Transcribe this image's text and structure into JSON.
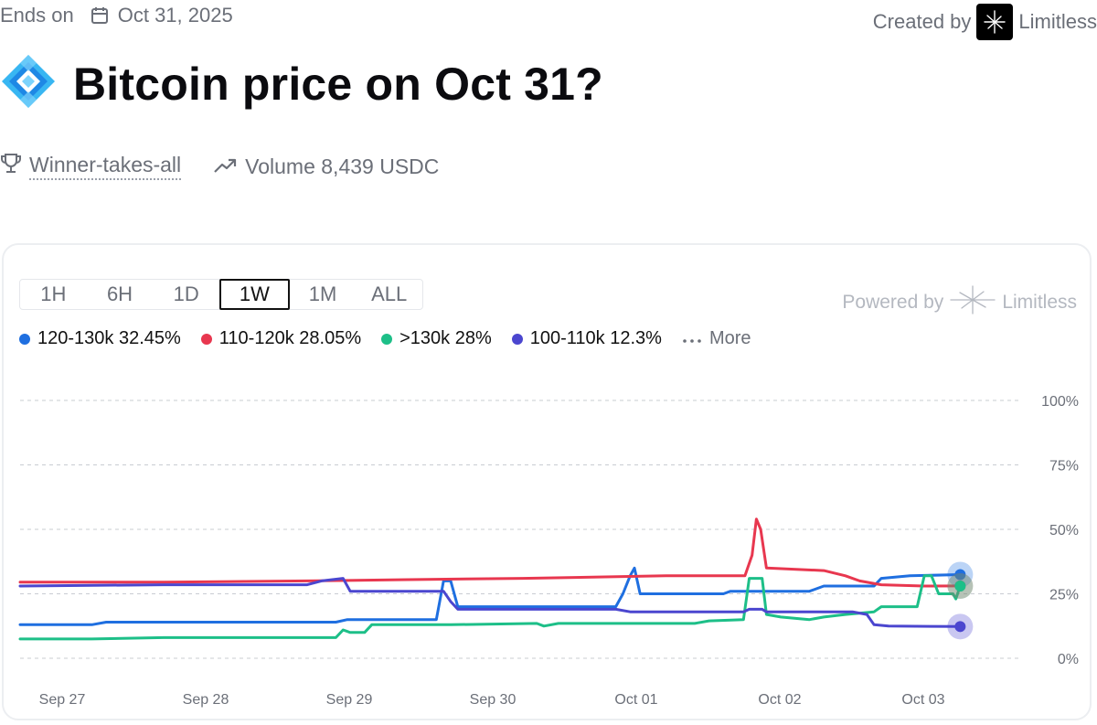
{
  "header": {
    "ends_label": "Ends on",
    "calendar_icon": "calendar-icon",
    "end_date": "Oct 31, 2025",
    "created_label": "Created by",
    "creator_name": "Limitless"
  },
  "market": {
    "title": "Bitcoin price on Oct 31?",
    "icon": "diamond-logo-icon",
    "type_label": "Winner-takes-all",
    "volume_text": "Volume 8,439 USDC"
  },
  "chart_controls": {
    "tabs": [
      "1H",
      "6H",
      "1D",
      "1W",
      "1M",
      "ALL"
    ],
    "active_tab": "1W",
    "powered_by": "Powered by",
    "powered_brand": "Limitless",
    "more_label": "More"
  },
  "colors": {
    "blue": "#1f6fe0",
    "red": "#e8374f",
    "green": "#1dbf88",
    "purple": "#4b46cf"
  },
  "chart_data": {
    "type": "line",
    "x_labels": [
      "Sep 27",
      "Sep 28",
      "Sep 29",
      "Sep 30",
      "Oct 01",
      "Oct 02",
      "Oct 03"
    ],
    "x_range": [
      0,
      7
    ],
    "ylim": [
      0,
      100
    ],
    "y_ticks": [
      "100%",
      "75%",
      "50%",
      "25%",
      "0%"
    ],
    "y_tick_values": [
      100,
      75,
      50,
      25,
      0
    ],
    "grid": true,
    "legend_position": "top-left",
    "series": [
      {
        "name": "120-130k",
        "legend_label": "120-130k 32.45%",
        "color": "#1f6fe0",
        "points": [
          [
            0,
            13
          ],
          [
            0.5,
            13
          ],
          [
            0.6,
            14
          ],
          [
            1.5,
            14
          ],
          [
            2.2,
            14
          ],
          [
            2.28,
            15
          ],
          [
            2.9,
            15
          ],
          [
            2.95,
            30
          ],
          [
            3.0,
            30
          ],
          [
            3.05,
            20
          ],
          [
            4.15,
            20
          ],
          [
            4.2,
            25
          ],
          [
            4.25,
            32
          ],
          [
            4.28,
            35
          ],
          [
            4.32,
            25
          ],
          [
            4.9,
            25
          ],
          [
            4.95,
            26
          ],
          [
            5.5,
            26
          ],
          [
            5.6,
            28
          ],
          [
            5.95,
            28
          ],
          [
            6.0,
            31
          ],
          [
            6.2,
            32
          ],
          [
            6.55,
            32.45
          ]
        ]
      },
      {
        "name": "110-120k",
        "legend_label": "110-120k 28.05%",
        "color": "#e8374f",
        "points": [
          [
            0,
            29.5
          ],
          [
            1.0,
            29.5
          ],
          [
            2.0,
            30
          ],
          [
            2.7,
            30.5
          ],
          [
            3.5,
            31
          ],
          [
            4.5,
            32
          ],
          [
            5.05,
            32
          ],
          [
            5.1,
            40
          ],
          [
            5.13,
            54
          ],
          [
            5.16,
            50
          ],
          [
            5.2,
            35
          ],
          [
            5.6,
            34
          ],
          [
            5.75,
            32
          ],
          [
            5.85,
            30
          ],
          [
            6.0,
            28.5
          ],
          [
            6.3,
            28
          ],
          [
            6.55,
            28.05
          ]
        ]
      },
      {
        "name": ">130k",
        "legend_label": ">130k 28%",
        "color": "#1dbf88",
        "points": [
          [
            0,
            7.5
          ],
          [
            0.5,
            7.5
          ],
          [
            1.0,
            8
          ],
          [
            2.2,
            8
          ],
          [
            2.25,
            11
          ],
          [
            2.3,
            10
          ],
          [
            2.4,
            10
          ],
          [
            2.45,
            13
          ],
          [
            3.0,
            13
          ],
          [
            3.6,
            13.5
          ],
          [
            3.65,
            12.5
          ],
          [
            3.75,
            13.5
          ],
          [
            4.7,
            13.5
          ],
          [
            4.8,
            14.5
          ],
          [
            5.04,
            15
          ],
          [
            5.08,
            31
          ],
          [
            5.17,
            31
          ],
          [
            5.2,
            17
          ],
          [
            5.3,
            16
          ],
          [
            5.5,
            15
          ],
          [
            5.6,
            16
          ],
          [
            5.75,
            17
          ],
          [
            5.95,
            18
          ],
          [
            6.0,
            20
          ],
          [
            6.25,
            20
          ],
          [
            6.3,
            32
          ],
          [
            6.35,
            32
          ],
          [
            6.4,
            25
          ],
          [
            6.5,
            25
          ],
          [
            6.52,
            23
          ],
          [
            6.55,
            28
          ]
        ]
      },
      {
        "name": "100-110k",
        "legend_label": "100-110k 12.3%",
        "color": "#4b46cf",
        "points": [
          [
            0,
            28
          ],
          [
            1.0,
            28.5
          ],
          [
            2.0,
            28.5
          ],
          [
            2.1,
            30
          ],
          [
            2.25,
            31
          ],
          [
            2.3,
            26
          ],
          [
            2.95,
            26
          ],
          [
            3.0,
            22
          ],
          [
            3.05,
            19
          ],
          [
            4.15,
            19
          ],
          [
            4.25,
            18
          ],
          [
            5.04,
            18
          ],
          [
            5.08,
            19
          ],
          [
            5.17,
            19
          ],
          [
            5.2,
            18
          ],
          [
            5.8,
            18
          ],
          [
            5.9,
            17
          ],
          [
            5.95,
            13
          ],
          [
            6.05,
            12.5
          ],
          [
            6.55,
            12.3
          ]
        ]
      }
    ]
  }
}
